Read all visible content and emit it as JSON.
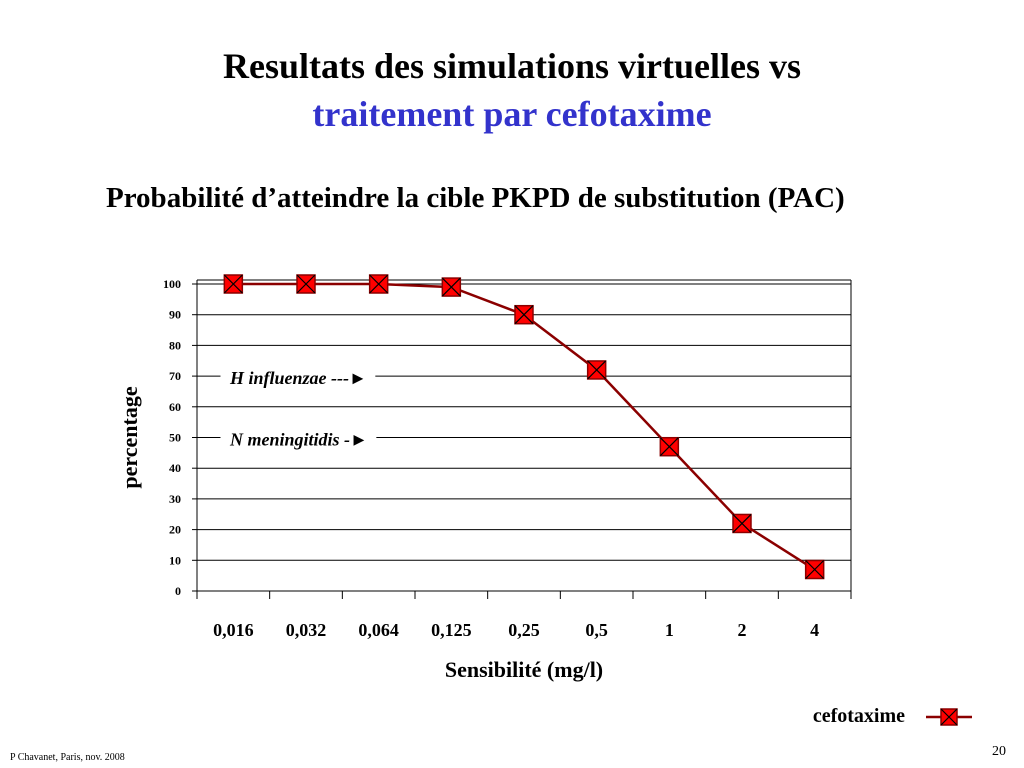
{
  "slide": {
    "title_line1": "Resultats des simulations virtuelles vs",
    "title_line2": "traitement par cefotaxime",
    "subtitle": "Probabilité d’atteindre la cible PKPD de substitution (PAC)",
    "footer": "P Chavanet, Paris, nov. 2008",
    "page_number": "20"
  },
  "colors": {
    "title_accent": "#3333cc",
    "series_line": "#8b0000",
    "marker_fill": "#ff0000"
  },
  "chart_data": {
    "type": "line",
    "title": "",
    "xlabel": "Sensibilité (mg/l)",
    "ylabel": "percentage",
    "categories": [
      "0,016",
      "0,032",
      "0,064",
      "0,125",
      "0,25",
      "0,5",
      "1",
      "2",
      "4"
    ],
    "series": [
      {
        "name": "cefotaxime",
        "values": [
          100,
          100,
          100,
          99,
          90,
          72,
          47,
          22,
          7
        ],
        "marker": "square-x"
      }
    ],
    "ylim": [
      0,
      100
    ],
    "yticks": [
      0,
      10,
      20,
      30,
      40,
      50,
      60,
      70,
      80,
      90,
      100
    ],
    "grid": true,
    "legend": "bottom-right",
    "annotations": [
      {
        "text": "H influenzae ---►",
        "y": 70
      },
      {
        "text": "N meningitidis -►",
        "y": 50
      }
    ]
  }
}
